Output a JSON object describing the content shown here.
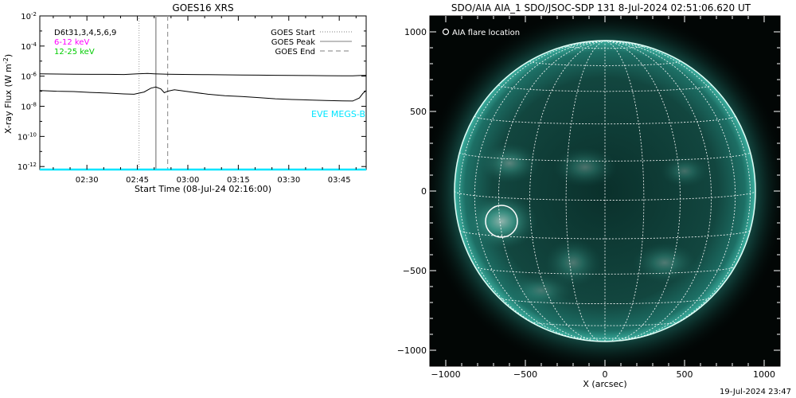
{
  "chart_data": [
    {
      "type": "line",
      "title": "GOES16 XRS",
      "ylabel": "X-ray Flux (W m",
      "ylabel_exp": "-2",
      "ylabel_close": ")",
      "xlabel": "Start Time (08-Jul-24 02:16:00)",
      "x_ticks": [
        "02:30",
        "02:45",
        "03:00",
        "03:15",
        "03:30",
        "03:45"
      ],
      "y_ticks": [
        {
          "base": "10",
          "exp": "-2",
          "value": -2
        },
        {
          "base": "10",
          "exp": "-4",
          "value": -4
        },
        {
          "base": "10",
          "exp": "-6",
          "value": -6
        },
        {
          "base": "10",
          "exp": "-8",
          "value": -8
        },
        {
          "base": "10",
          "exp": "-10",
          "value": -10
        },
        {
          "base": "10",
          "exp": "-12",
          "value": -12
        }
      ],
      "xlim_minutes_after_start": [
        0,
        97
      ],
      "ylim_log10": [
        -12.2,
        -2
      ],
      "y_scale": "log",
      "info_lines": [
        {
          "text": "D6t31,3,4,5,6,9",
          "color": "#000000"
        },
        {
          "text": "6-12 keV",
          "color": "#ff00ff"
        },
        {
          "text": "12-25 keV",
          "color": "#00cc00"
        }
      ],
      "legend": [
        {
          "label": "GOES Start",
          "style": "dotted",
          "color": "#999999"
        },
        {
          "label": "GOES Peak",
          "style": "solid",
          "color": "#999999"
        },
        {
          "label": "GOES End",
          "style": "dashed",
          "color": "#999999"
        }
      ],
      "annotation": {
        "text": "EVE MEGS-B",
        "color": "#00e5ff"
      },
      "markers_minutes_after_start": {
        "start": 29.5,
        "peak": 34.5,
        "end": 38.0
      },
      "series": [
        {
          "color": "#000000",
          "x": [
            0,
            5,
            10,
            15,
            20,
            25,
            29,
            32,
            34,
            36,
            38,
            40,
            45,
            50,
            55,
            60,
            65,
            70,
            75,
            80,
            85,
            90,
            93,
            95,
            97
          ],
          "log10_flux": [
            -5.85,
            -5.86,
            -5.87,
            -5.88,
            -5.88,
            -5.89,
            -5.85,
            -5.82,
            -5.84,
            -5.86,
            -5.87,
            -5.88,
            -5.89,
            -5.9,
            -5.91,
            -5.92,
            -5.93,
            -5.94,
            -5.95,
            -5.96,
            -5.97,
            -5.98,
            -5.98,
            -5.96,
            -5.94
          ]
        },
        {
          "color": "#000000",
          "x": [
            0,
            5,
            10,
            15,
            20,
            25,
            28,
            31,
            33,
            34.5,
            36,
            37,
            38,
            40,
            45,
            50,
            55,
            60,
            65,
            70,
            75,
            80,
            85,
            90,
            93,
            95,
            96,
            97
          ],
          "log10_flux": [
            -6.95,
            -7.0,
            -7.02,
            -7.08,
            -7.12,
            -7.18,
            -7.2,
            -7.05,
            -6.8,
            -6.72,
            -6.85,
            -7.1,
            -7.0,
            -6.9,
            -7.05,
            -7.2,
            -7.3,
            -7.35,
            -7.42,
            -7.5,
            -7.55,
            -7.58,
            -7.62,
            -7.64,
            -7.65,
            -7.45,
            -7.15,
            -6.95
          ]
        },
        {
          "color": "#00e5ff",
          "x": [
            0,
            97
          ],
          "log10_flux": [
            -12.2,
            -12.2
          ]
        }
      ]
    },
    {
      "type": "heatmap",
      "title": "SDO/AIA AIA_1 SDO/JSOC-SDP 131  8-Jul-2024 02:51:06.620 UT",
      "xlabel": "X (arcsec)",
      "x_ticks": [
        "−1000",
        "−500",
        "0",
        "500",
        "1000"
      ],
      "x_tick_values": [
        -1000,
        -500,
        0,
        500,
        1000
      ],
      "y_ticks": [
        "1000",
        "500",
        "0",
        "−500",
        "−1000"
      ],
      "y_tick_values": [
        1000,
        500,
        0,
        -500,
        -1000
      ],
      "xlim_arcsec": [
        -1100,
        1100
      ],
      "ylim_arcsec": [
        -1100,
        1100
      ],
      "solar_radius_arcsec": 945,
      "grid_spacing_deg": 15,
      "legend": [
        {
          "label": "AIA flare location",
          "marker": "circle",
          "color": "#ffffff"
        }
      ],
      "flare_location_arcsec": {
        "x": -650,
        "y": -190,
        "circle_radius": 100
      },
      "colors": {
        "background": "#020605",
        "disk_center": "#0c3b34",
        "disk_limb": "#1f7d72",
        "limb_glow": "#7ff0dd",
        "grid": "#ffffff"
      }
    }
  ],
  "footer": {
    "timestamp": "19-Jul-2024 23:47"
  }
}
